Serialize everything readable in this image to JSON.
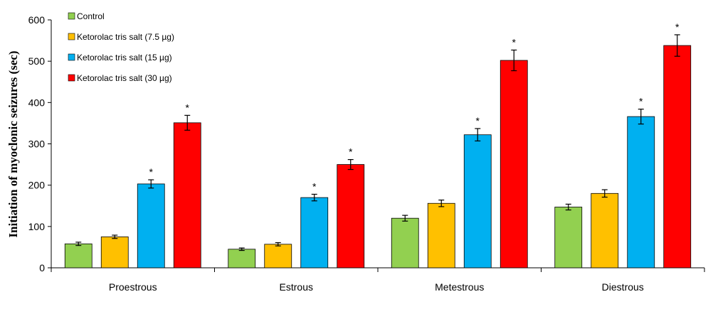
{
  "chart_data": {
    "type": "bar",
    "title": "",
    "xlabel": "",
    "ylabel": "Initiation of myoclonic seizures (sec)",
    "ylim": [
      0,
      600
    ],
    "yticks": [
      0,
      100,
      200,
      300,
      400,
      500,
      600
    ],
    "categories": [
      "Proestrous",
      "Estrous",
      "Metestrous",
      "Diestrous"
    ],
    "legend_position": "top-left",
    "grid": false,
    "significance_marker": "*",
    "series": [
      {
        "name": "Control",
        "color": "#92d050",
        "values": [
          58,
          45,
          120,
          147
        ],
        "errors": [
          4,
          3,
          7,
          7
        ],
        "significant": [
          false,
          false,
          false,
          false
        ]
      },
      {
        "name": "Ketorolac tris salt (7.5 µg)",
        "color": "#ffc000",
        "values": [
          75,
          57,
          156,
          180
        ],
        "errors": [
          4,
          4,
          8,
          9
        ],
        "significant": [
          false,
          false,
          false,
          false
        ]
      },
      {
        "name": "Ketorolac tris salt (15 µg)",
        "color": "#00b0f0",
        "values": [
          203,
          170,
          322,
          366
        ],
        "errors": [
          10,
          8,
          15,
          18
        ],
        "significant": [
          true,
          true,
          true,
          true
        ]
      },
      {
        "name": "Ketorolac tris salt (30 µg)",
        "color": "#ff0000",
        "values": [
          351,
          250,
          502,
          538
        ],
        "errors": [
          18,
          12,
          25,
          26
        ],
        "significant": [
          true,
          true,
          true,
          true
        ]
      }
    ]
  }
}
